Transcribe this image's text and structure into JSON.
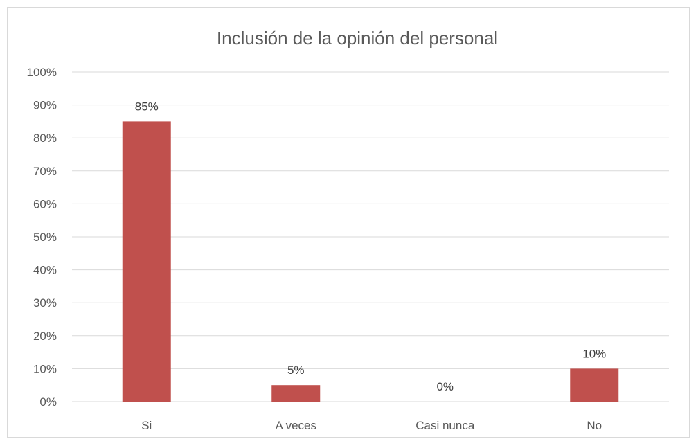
{
  "chart_data": {
    "type": "bar",
    "title": "Inclusión de la opinión del personal",
    "categories": [
      "Si",
      "A veces",
      "Casi nunca",
      "No"
    ],
    "values": [
      85,
      5,
      0,
      10
    ],
    "data_labels": [
      "85%",
      "5%",
      "0%",
      "10%"
    ],
    "ylim": [
      0,
      100
    ],
    "yticks": [
      0,
      10,
      20,
      30,
      40,
      50,
      60,
      70,
      80,
      90,
      100
    ],
    "ytick_labels": [
      "0%",
      "10%",
      "20%",
      "30%",
      "40%",
      "50%",
      "60%",
      "70%",
      "80%",
      "90%",
      "100%"
    ],
    "xlabel": "",
    "ylabel": "",
    "grid": true,
    "legend": "none",
    "bar_color": "#c0504d",
    "grid_color": "#d9d9d9",
    "text_color": "#595959"
  }
}
